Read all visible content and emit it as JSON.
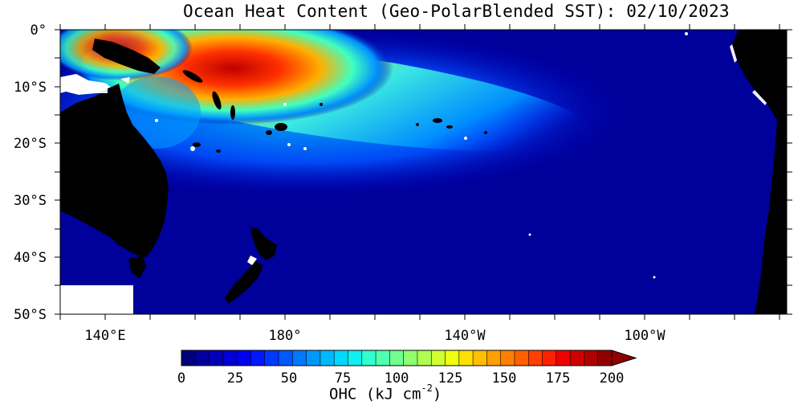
{
  "title": "Ocean Heat Content (Geo-PolarBlended SST): 02/10/2023",
  "map": {
    "lat_ticks": [
      "0°",
      "10°S",
      "20°S",
      "30°S",
      "40°S",
      "50°S"
    ],
    "lon_ticks": [
      "140°E",
      "180°",
      "140°W",
      "100°W"
    ],
    "ocean_color": "#00009a",
    "land_color": "#000000",
    "nodata_color": "#ffffff"
  },
  "colorbar": {
    "ticks": [
      "0",
      "25",
      "50",
      "75",
      "100",
      "125",
      "150",
      "175",
      "200"
    ],
    "title_main": "OHC (kJ cm",
    "title_sup": "-2",
    "title_end": ")",
    "colors": [
      "#00007a",
      "#00009a",
      "#0000b8",
      "#0000d4",
      "#0000f0",
      "#0018ff",
      "#0038ff",
      "#0058ff",
      "#0078ff",
      "#0098ff",
      "#00b8ff",
      "#00d8ff",
      "#10f0f0",
      "#30ffd0",
      "#50ffb0",
      "#70ff90",
      "#90ff70",
      "#b0ff50",
      "#d0ff30",
      "#f0ff10",
      "#ffe000",
      "#ffc000",
      "#ffa000",
      "#ff8000",
      "#ff6000",
      "#ff4000",
      "#ff2000",
      "#f00000",
      "#d00000",
      "#b00000",
      "#900000"
    ]
  }
}
